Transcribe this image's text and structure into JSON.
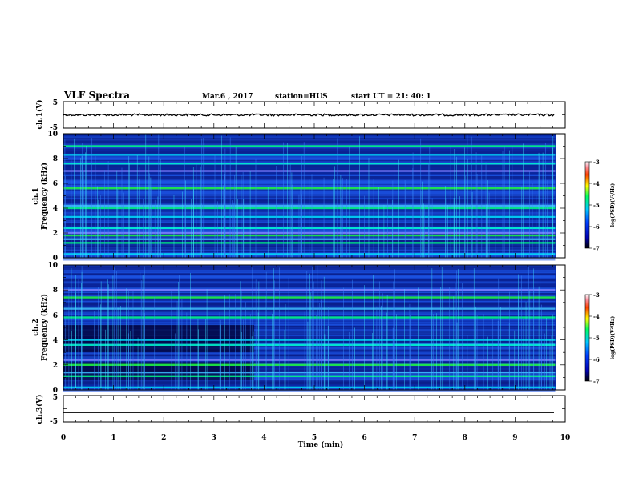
{
  "header": {
    "title": "VLF Spectra",
    "date": "Mar.6 , 2017",
    "station": "station=HUS",
    "start": "start UT = 21: 40: 1"
  },
  "chart_data": {
    "type": "heatmap",
    "x_axis": {
      "label": "Time (min)",
      "range": [
        0,
        10
      ],
      "ticks": [
        "0",
        "1",
        "2",
        "3",
        "4",
        "5",
        "6",
        "7",
        "8",
        "9",
        "10"
      ]
    },
    "panels": [
      {
        "id": "ch1-waveform",
        "type": "line",
        "ylabel": "ch.1(V)",
        "ylim": [
          -5,
          5
        ],
        "yticks": [
          "5",
          "-5"
        ],
        "trace_level": 0,
        "data_end_min": 9.8
      },
      {
        "id": "ch1-spectrogram",
        "type": "heatmap",
        "ylabel": "ch.1",
        "ylabel2": "Frequency (kHz)",
        "ylim": [
          0,
          10
        ],
        "yticks": [
          "0",
          "2",
          "4",
          "6",
          "8",
          "10"
        ],
        "data_end_min": 9.8,
        "bands_khz": [
          0.3,
          1.2,
          1.5,
          1.8,
          2.0,
          2.4,
          3.3,
          4.0,
          4.2,
          5.6,
          7.0,
          7.6,
          8.3,
          9.0
        ],
        "colorbar": {
          "label": "log(PSD)(V²/Hz)",
          "range": [
            -7,
            -3
          ],
          "ticks": [
            "-3",
            "-4",
            "-5",
            "-6",
            "-7"
          ]
        }
      },
      {
        "id": "ch2-spectrogram",
        "type": "heatmap",
        "ylabel": "ch.2",
        "ylabel2": "Frequency (kHz)",
        "ylim": [
          0,
          10
        ],
        "yticks": [
          "0",
          "2",
          "4",
          "6",
          "8",
          "10"
        ],
        "data_end_min": 9.8,
        "bands_khz": [
          0.2,
          1.1,
          1.4,
          2.0,
          2.4,
          3.6,
          4.0,
          5.8,
          6.5,
          7.4,
          8.0
        ],
        "colorbar": {
          "label": "log(PSD)(V²/Hz)",
          "range": [
            -7,
            -3
          ],
          "ticks": [
            "-3",
            "-4",
            "-5",
            "-6",
            "-7"
          ]
        }
      },
      {
        "id": "ch3-waveform",
        "type": "line",
        "ylabel": "ch.3(V)",
        "ylim": [
          -5,
          5
        ],
        "yticks": [
          "5",
          "-5"
        ],
        "trace_level": -1.5,
        "data_end_min": 9.8
      }
    ]
  }
}
